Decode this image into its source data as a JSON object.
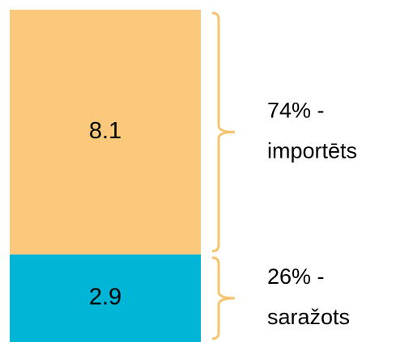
{
  "chart_data": {
    "type": "bar",
    "stacked": true,
    "series": [
      {
        "color": "#00b5d6",
        "values": [
          2.9
        ]
      },
      {
        "color": "#fbc97c",
        "values": [
          8.1
        ]
      }
    ],
    "annotations": [
      [
        "26% -",
        "saražots"
      ],
      [
        "74% -",
        "importēts"
      ]
    ],
    "bracket_color": "#f8c36e",
    "ylim": [
      0,
      11
    ]
  }
}
